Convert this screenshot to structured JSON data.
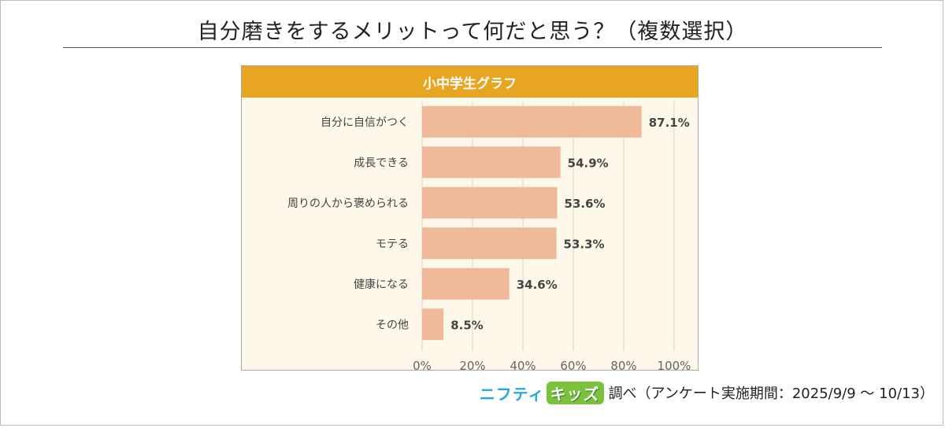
{
  "title": "自分磨きをするメリットって何だと思う？（複数選択）",
  "panel_title": "小中学生グラフ",
  "footer": {
    "logo_main": "ニフティ",
    "logo_sub": "キッズ",
    "text": "調べ（アンケート実施期間：2025/9/9 ～ 10/13）"
  },
  "colors": {
    "bar": "#efb99a",
    "header": "#e8a521",
    "panel_bg": "#fdf8ea"
  },
  "chart_data": {
    "type": "bar",
    "orientation": "horizontal",
    "categories": [
      "自分に自信がつく",
      "成長できる",
      "周りの人から褒められる",
      "モテる",
      "健康になる",
      "その他"
    ],
    "values": [
      87.1,
      54.9,
      53.6,
      53.3,
      34.6,
      8.5
    ],
    "value_labels": [
      "87.1%",
      "54.9%",
      "53.6%",
      "53.3%",
      "34.6%",
      "8.5%"
    ],
    "xlim": [
      0,
      100
    ],
    "x_ticks": [
      0,
      20,
      40,
      60,
      80,
      100
    ],
    "x_tick_labels": [
      "0%",
      "20%",
      "40%",
      "60%",
      "80%",
      "100%"
    ],
    "grid": true
  }
}
